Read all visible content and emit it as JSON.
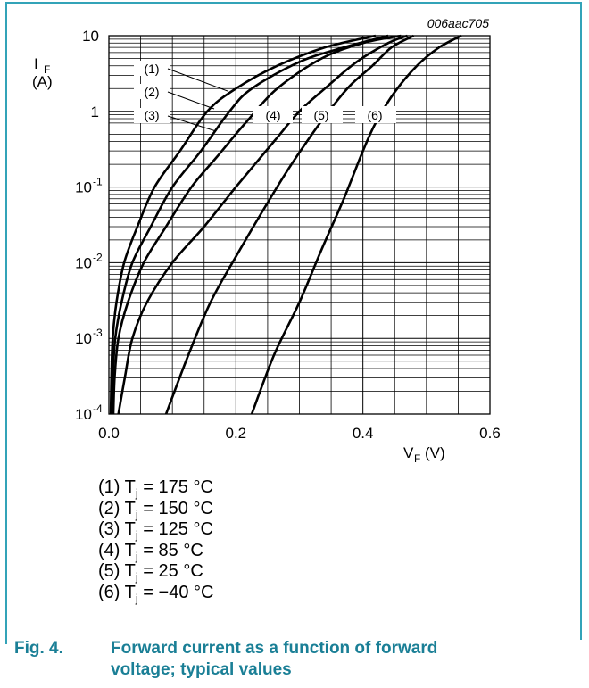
{
  "figure": {
    "code": "006aac705",
    "caption_number": "Fig. 4.",
    "caption_text": "Forward current as a function of forward voltage; typical values",
    "frame_color": "#33a3b8",
    "caption_color": "#1a7f96"
  },
  "chart_data": {
    "type": "line",
    "title": "",
    "xlabel": "V_F (V)",
    "ylabel": "I_F (A)",
    "xlim": [
      0,
      0.6
    ],
    "ylim": [
      0.0001,
      10
    ],
    "yscale": "log",
    "grid": true,
    "x_ticks": [
      0.0,
      0.2,
      0.4,
      0.6
    ],
    "x_tick_labels": [
      "0.0",
      "0.2",
      "0.4",
      "0.6"
    ],
    "y_ticks": [
      0.0001,
      0.001,
      0.01,
      0.1,
      1,
      10
    ],
    "y_tick_labels": [
      {
        "base": "10",
        "exp": "-4"
      },
      {
        "base": "10",
        "exp": "-3"
      },
      {
        "base": "10",
        "exp": "-2"
      },
      {
        "base": "10",
        "exp": "-1"
      },
      {
        "base": "1",
        "exp": ""
      },
      {
        "base": "10",
        "exp": ""
      }
    ],
    "series": [
      {
        "name": "(1)",
        "legend": "(1) Tj = 175 °C",
        "Tj": "175 °C",
        "points": [
          [
            0.003,
            0.0001
          ],
          [
            0.004,
            0.0003
          ],
          [
            0.006,
            0.001
          ],
          [
            0.012,
            0.003
          ],
          [
            0.024,
            0.01
          ],
          [
            0.045,
            0.03
          ],
          [
            0.072,
            0.1
          ],
          [
            0.112,
            0.3
          ],
          [
            0.155,
            1
          ],
          [
            0.2,
            2
          ],
          [
            0.265,
            4
          ],
          [
            0.34,
            7
          ],
          [
            0.42,
            10
          ]
        ]
      },
      {
        "name": "(2)",
        "legend": "(2) Tj = 150 °C",
        "Tj": "150 °C",
        "points": [
          [
            0.004,
            0.0001
          ],
          [
            0.006,
            0.0003
          ],
          [
            0.01,
            0.001
          ],
          [
            0.02,
            0.003
          ],
          [
            0.037,
            0.01
          ],
          [
            0.066,
            0.03
          ],
          [
            0.1,
            0.1
          ],
          [
            0.145,
            0.3
          ],
          [
            0.19,
            1
          ],
          [
            0.225,
            2
          ],
          [
            0.3,
            4.5
          ],
          [
            0.37,
            7
          ],
          [
            0.44,
            10
          ]
        ]
      },
      {
        "name": "(3)",
        "legend": "(3) Tj = 125 °C",
        "Tj": "125 °C",
        "points": [
          [
            0.007,
            0.0001
          ],
          [
            0.009,
            0.0003
          ],
          [
            0.015,
            0.001
          ],
          [
            0.03,
            0.003
          ],
          [
            0.055,
            0.01
          ],
          [
            0.09,
            0.03
          ],
          [
            0.13,
            0.1
          ],
          [
            0.17,
            0.25
          ],
          [
            0.215,
            0.7
          ],
          [
            0.265,
            2
          ],
          [
            0.335,
            5
          ],
          [
            0.4,
            8
          ],
          [
            0.46,
            10
          ]
        ]
      },
      {
        "name": "(4)",
        "legend": "(4) Tj = 85 °C",
        "Tj": "85 °C",
        "points": [
          [
            0.015,
            0.0001
          ],
          [
            0.025,
            0.0003
          ],
          [
            0.037,
            0.001
          ],
          [
            0.06,
            0.003
          ],
          [
            0.1,
            0.01
          ],
          [
            0.15,
            0.03
          ],
          [
            0.2,
            0.1
          ],
          [
            0.26,
            0.4
          ],
          [
            0.3,
            1
          ],
          [
            0.34,
            2
          ],
          [
            0.39,
            4.5
          ],
          [
            0.44,
            8
          ],
          [
            0.47,
            10
          ]
        ]
      },
      {
        "name": "(5)",
        "legend": "(5) Tj = 25 °C",
        "Tj": "25 °C",
        "points": [
          [
            0.09,
            0.0001
          ],
          [
            0.125,
            0.0006
          ],
          [
            0.16,
            0.003
          ],
          [
            0.2,
            0.012
          ],
          [
            0.24,
            0.045
          ],
          [
            0.28,
            0.16
          ],
          [
            0.32,
            0.5
          ],
          [
            0.35,
            1.1
          ],
          [
            0.38,
            2.2
          ],
          [
            0.415,
            4
          ],
          [
            0.445,
            7
          ],
          [
            0.48,
            10
          ]
        ]
      },
      {
        "name": "(6)",
        "legend": "(6) Tj = −40 °C",
        "Tj": "−40 °C",
        "points": [
          [
            0.225,
            0.0001
          ],
          [
            0.26,
            0.0006
          ],
          [
            0.3,
            0.003
          ],
          [
            0.335,
            0.015
          ],
          [
            0.37,
            0.07
          ],
          [
            0.4,
            0.3
          ],
          [
            0.42,
            0.7
          ],
          [
            0.45,
            1.8
          ],
          [
            0.485,
            4
          ],
          [
            0.52,
            7
          ],
          [
            0.555,
            10
          ]
        ]
      }
    ]
  },
  "legend": [
    {
      "prefix": "(1) T",
      "sub": "j",
      "rest": " = 175 °C"
    },
    {
      "prefix": "(2) T",
      "sub": "j",
      "rest": " = 150 °C"
    },
    {
      "prefix": "(3) T",
      "sub": "j",
      "rest": " = 125 °C"
    },
    {
      "prefix": "(4) T",
      "sub": "j",
      "rest": " = 85 °C"
    },
    {
      "prefix": "(5) T",
      "sub": "j",
      "rest": " = 25 °C"
    },
    {
      "prefix": "(6) T",
      "sub": "j",
      "rest": " = −40 °C"
    }
  ]
}
